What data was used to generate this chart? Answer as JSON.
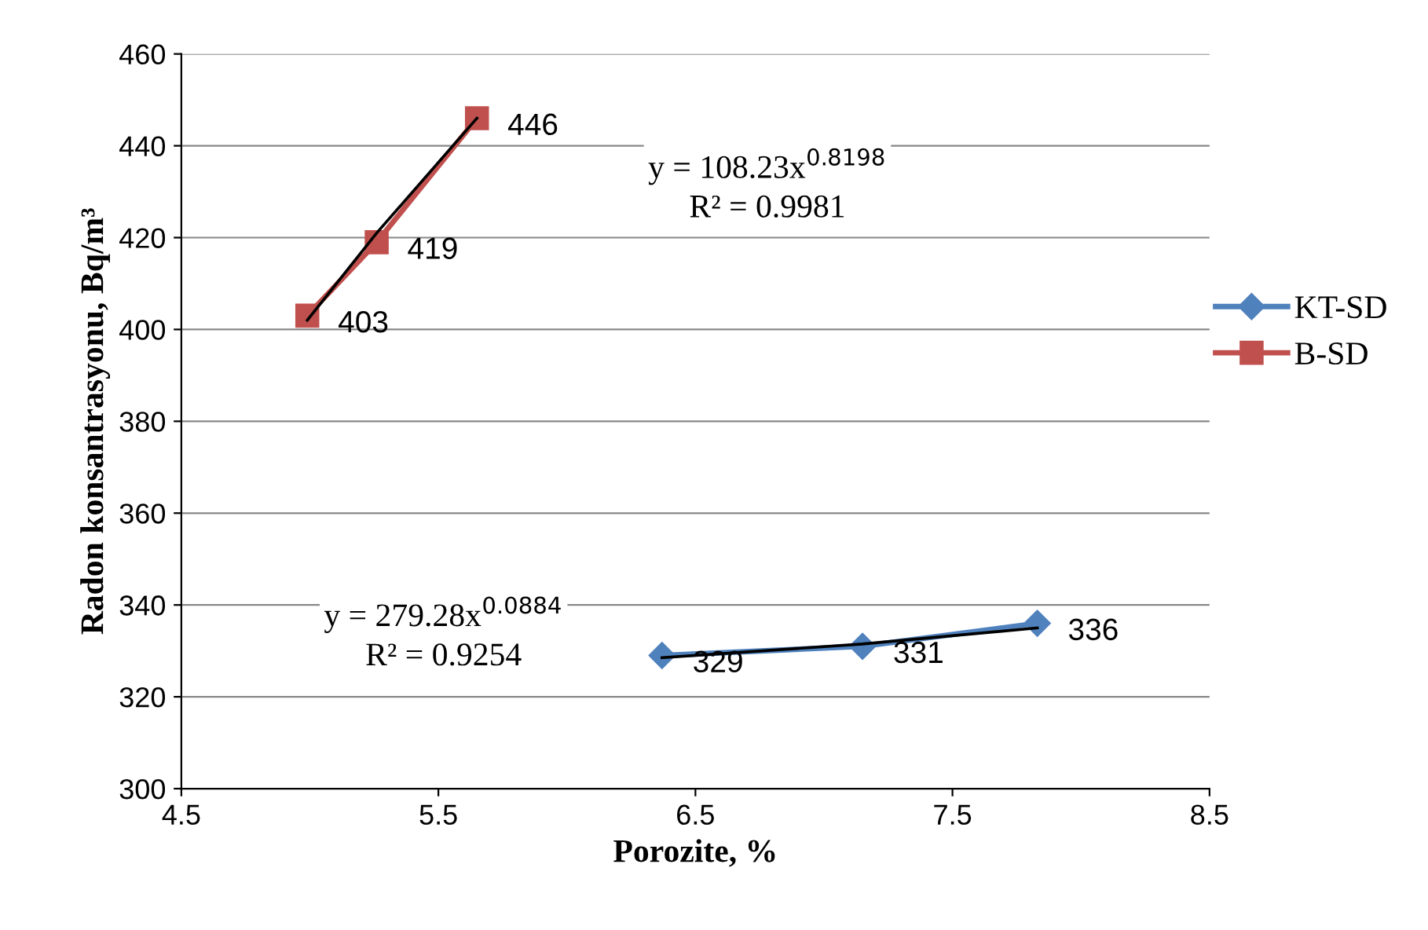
{
  "chart_data": {
    "type": "line",
    "xlabel": "Porozite, %",
    "ylabel": "Radon konsantrasyonu, Bq/m³",
    "xlim": [
      4.5,
      8.5
    ],
    "xticks": [
      4.5,
      5.5,
      6.5,
      7.5,
      8.5
    ],
    "ylim": [
      300,
      460
    ],
    "yticks": [
      300,
      320,
      340,
      360,
      380,
      400,
      420,
      440,
      460
    ],
    "grid": "y",
    "legend": "right",
    "series": [
      {
        "name": "KT-SD",
        "color": "#4f81bd",
        "marker": "diamond",
        "x": [
          6.37,
          7.15,
          7.83
        ],
        "values": [
          329,
          331,
          336
        ],
        "value_labels": [
          "329",
          "331",
          "336"
        ]
      },
      {
        "name": "B-SD",
        "color": "#c0504d",
        "marker": "square",
        "x": [
          4.99,
          5.26,
          5.65
        ],
        "values": [
          403,
          419,
          446
        ],
        "value_labels": [
          "403",
          "419",
          "446"
        ]
      },
      {
        "type": "line",
        "color": "#000000",
        "marker": "none",
        "x": [
          6.37,
          7.15,
          7.83
        ],
        "values": [
          328.5,
          331.5,
          335
        ]
      },
      {
        "type": "line",
        "color": "#000000",
        "marker": "none",
        "x": [
          4.99,
          5.26,
          5.65
        ],
        "values": [
          402,
          421,
          446
        ]
      }
    ],
    "annotations": [
      "y = 108.23x$^{0.8198}$\nR² = 0.9981",
      "y = 279.28x$^{0.0884}$\nR² = 0.9254"
    ]
  }
}
